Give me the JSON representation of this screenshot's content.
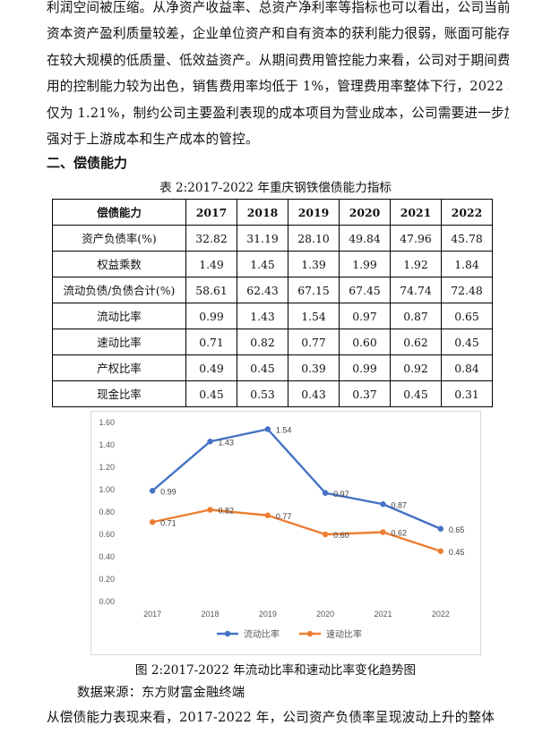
{
  "intro_lines": [
    "利润空间被压缩。从净资产收益率、总资产净利率等指标也可以看出，公司当前",
    "资本资产盈利质量较差，企业单位资产和自有资本的获利能力很弱，账面可能存",
    "在较大规模的低质量、低效益资产。从期间费用管控能力来看，公司对于期间费",
    "用的控制能力较为出色，销售费用率均低于 1%，管理费用率整体下行，2022 年",
    "仅为 1.21%，制约公司主要盈利表现的成本项目为营业成本，公司需要进一步加",
    "强对于上游成本和生产成本的管控。"
  ],
  "section_heading": "二、偿债能力",
  "table": {
    "caption": "表 2:2017-2022 年重庆钢铁偿债能力指标",
    "header": [
      "偿债能力",
      "2017",
      "2018",
      "2019",
      "2020",
      "2021",
      "2022"
    ],
    "rows": [
      [
        "资产负债率(%)",
        "32.82",
        "31.19",
        "28.10",
        "49.84",
        "47.96",
        "45.78"
      ],
      [
        "权益乘数",
        "1.49",
        "1.45",
        "1.39",
        "1.99",
        "1.92",
        "1.84"
      ],
      [
        "流动负债/负债合计(%)",
        "58.61",
        "62.43",
        "67.15",
        "67.45",
        "74.74",
        "72.48"
      ],
      [
        "流动比率",
        "0.99",
        "1.43",
        "1.54",
        "0.97",
        "0.87",
        "0.65"
      ],
      [
        "速动比率",
        "0.71",
        "0.82",
        "0.77",
        "0.60",
        "0.62",
        "0.45"
      ],
      [
        "产权比率",
        "0.49",
        "0.45",
        "0.39",
        "0.99",
        "0.92",
        "0.84"
      ],
      [
        "现金比率",
        "0.45",
        "0.53",
        "0.43",
        "0.37",
        "0.45",
        "0.31"
      ]
    ]
  },
  "chart_data": {
    "type": "line",
    "categories": [
      "2017",
      "2018",
      "2019",
      "2020",
      "2021",
      "2022"
    ],
    "series": [
      {
        "name": "流动比率",
        "color": "#4472C4",
        "values": [
          0.99,
          1.43,
          1.54,
          0.97,
          0.87,
          0.65
        ],
        "labels": [
          "0.99",
          "1.43",
          "1.54",
          "0.97",
          "0.87",
          "0.65"
        ]
      },
      {
        "name": "速动比率",
        "color": "#ED7D31",
        "values": [
          0.71,
          0.82,
          0.77,
          0.6,
          0.62,
          0.45
        ],
        "labels": [
          "0.71",
          "0.82",
          "0.77",
          "0.60",
          "0.62",
          "0.45"
        ]
      }
    ],
    "y_ticks": [
      "0.00",
      "0.20",
      "0.40",
      "0.60",
      "0.80",
      "1.00",
      "1.20",
      "1.40",
      "1.60"
    ],
    "ylim": [
      0,
      1.6
    ],
    "grid": false,
    "legend_position": "bottom"
  },
  "figure_caption": "图 2:2017-2022 年流动比率和速动比率变化趋势图",
  "data_source": "数据来源：东方财富金融终端",
  "closing_line": "从偿债能力表现来看，2017-2022 年，公司资产负债率呈现波动上升的整体"
}
